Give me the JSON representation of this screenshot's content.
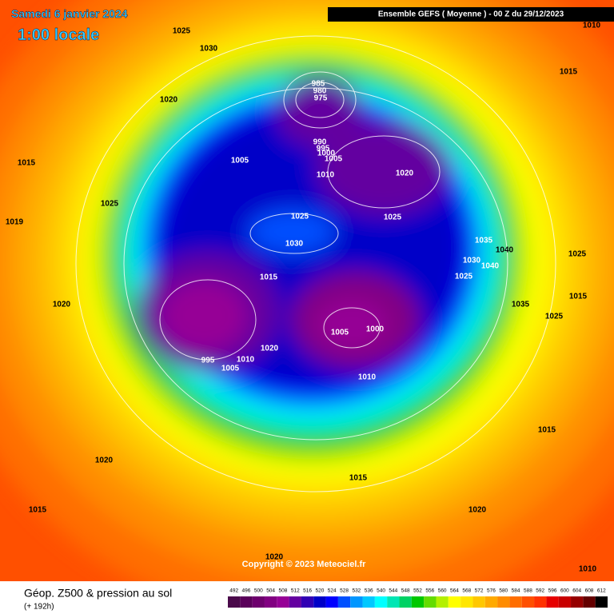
{
  "header": {
    "title": "Samedi 6 janvier 2024",
    "local_time": "1:00 locale",
    "run": "Ensemble GEFS  ( Moyenne )  -  00 Z du 29/12/2023"
  },
  "isobar_labels": [
    "1025",
    "1030",
    "1010",
    "1015",
    "1020",
    "985",
    "980",
    "975",
    "990",
    "995",
    "1000",
    "1005",
    "1005",
    "1010",
    "1020",
    "1015",
    "1025",
    "1025",
    "1030",
    "1025",
    "1035",
    "1040",
    "1030",
    "1040",
    "1025",
    "1025",
    "1019",
    "1015",
    "1020",
    "1015",
    "1035",
    "1025",
    "1005",
    "1000",
    "995",
    "1005",
    "1010",
    "1020",
    "1010",
    "1015",
    "1020",
    "1015",
    "1020",
    "1015",
    "1020",
    "1010"
  ],
  "copyright": "Copyright © 2023 Meteociel.fr",
  "footer": {
    "title": "Géop. Z500 & pression au sol",
    "lead": "(+ 192h)"
  },
  "scale": {
    "values": [
      492,
      496,
      500,
      504,
      508,
      512,
      516,
      520,
      524,
      528,
      532,
      536,
      540,
      544,
      548,
      552,
      556,
      560,
      564,
      568,
      572,
      576,
      580,
      584,
      588,
      592,
      596,
      600,
      604,
      608,
      612
    ],
    "colors": [
      "#4b0a4b",
      "#5a005a",
      "#6e006e",
      "#820082",
      "#960096",
      "#6400a0",
      "#3200b4",
      "#0000c8",
      "#0000ff",
      "#0050ff",
      "#0096ff",
      "#00c8ff",
      "#00ffff",
      "#00e6b4",
      "#00d264",
      "#00c800",
      "#64dc00",
      "#b4f000",
      "#ffff00",
      "#ffe600",
      "#ffc800",
      "#ffaa00",
      "#ff8c00",
      "#ff6e00",
      "#ff5000",
      "#ff3200",
      "#e60000",
      "#c80000",
      "#960000",
      "#640000",
      "#000000"
    ]
  }
}
